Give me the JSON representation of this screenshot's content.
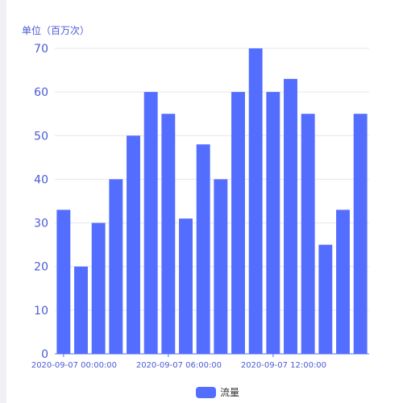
{
  "colors": {
    "bar": "#536dfe",
    "axis_text": "#4a5bd4",
    "grid": "#e3e6ee",
    "axis_line": "#536dfe"
  },
  "chart_data": {
    "type": "bar",
    "title": "",
    "ylabel": "单位（百万次）",
    "xlabel": "",
    "ylim": [
      0,
      70
    ],
    "yticks": [
      0,
      10,
      20,
      30,
      40,
      50,
      60,
      70
    ],
    "grid": true,
    "legend_position": "bottom-center",
    "x_tick_labels": [
      {
        "index": 0,
        "text": "2020-09-07 00:00:00"
      },
      {
        "index": 6,
        "text": "2020-09-07 06:00:00"
      },
      {
        "index": 12,
        "text": "2020-09-07 12:00:00"
      }
    ],
    "series": [
      {
        "name": "流量",
        "values": [
          33,
          20,
          30,
          40,
          50,
          60,
          55,
          31,
          48,
          40,
          60,
          70,
          60,
          63,
          55,
          25,
          33,
          55
        ]
      }
    ]
  }
}
